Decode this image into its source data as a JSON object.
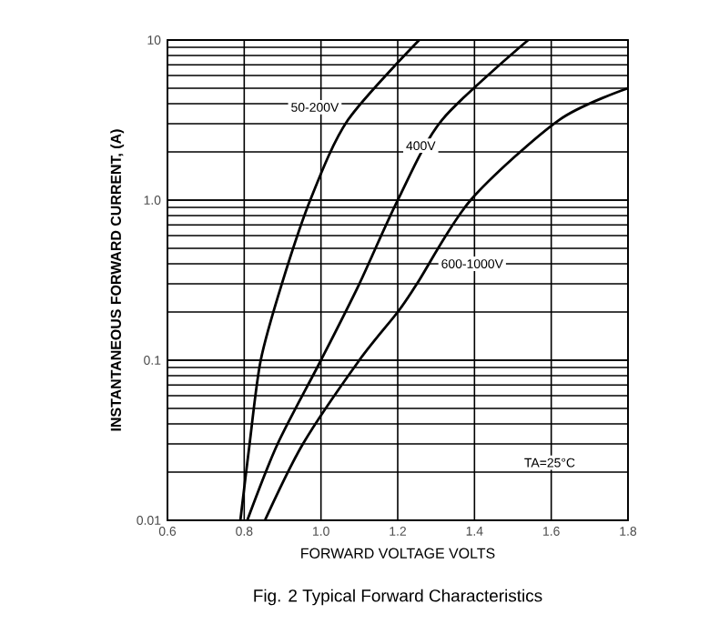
{
  "chart_data": {
    "type": "line",
    "title": "Fig. 2  Typical Forward Characteristics",
    "xlabel": "FORWARD VOLTAGE VOLTS",
    "ylabel": "INSTANTANEOUS FORWARD CURRENT, (A)",
    "log": "y",
    "grid": true,
    "marker": "none",
    "line_style": "solid",
    "xlim": [
      0.6,
      1.8
    ],
    "ylim": [
      0.01,
      10
    ],
    "xticks": [
      0.6,
      0.8,
      {
        "value": 1.0,
        "label": "1.0"
      },
      1.2,
      1.4,
      1.6,
      1.8
    ],
    "yticks": [
      0.01,
      0.1,
      {
        "value": 1,
        "label": "1.0"
      },
      10
    ],
    "annotations": [
      "TA=25°C"
    ],
    "series": [
      {
        "name": "50-200V",
        "color": "#000000",
        "x": [
          0.79,
          0.814,
          0.843,
          0.898,
          0.972,
          1.07,
          1.256
        ],
        "values": [
          0.01,
          0.03,
          0.1,
          0.3,
          1.0,
          3.16,
          10
        ]
      },
      {
        "name": "400V",
        "color": "#000000",
        "x": [
          0.808,
          0.887,
          1.0,
          1.1,
          1.2,
          1.315,
          1.54
        ],
        "values": [
          0.01,
          0.03,
          0.1,
          0.3,
          1.0,
          3.16,
          10
        ]
      },
      {
        "name": "600-1000V",
        "color": "#000000",
        "x": [
          0.854,
          0.953,
          1.1,
          1.2,
          1.25,
          1.39,
          1.62,
          1.8
        ],
        "values": [
          0.01,
          0.03,
          0.1,
          0.2,
          0.3,
          1.0,
          3.16,
          5
        ]
      }
    ]
  }
}
